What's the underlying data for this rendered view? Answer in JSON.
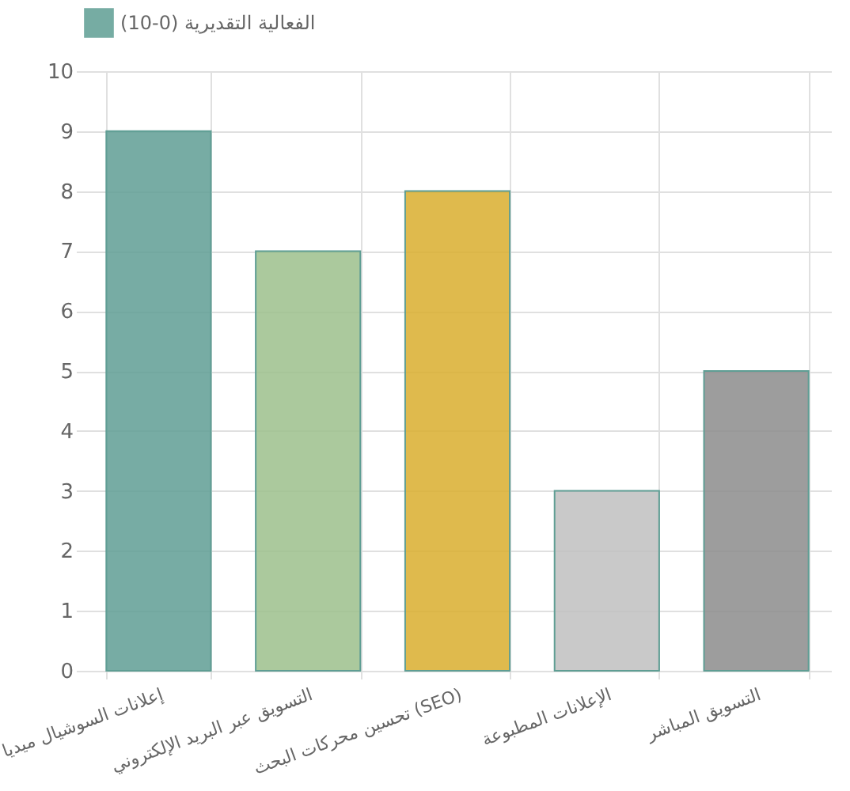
{
  "chart_data": {
    "type": "bar",
    "categories": [
      "إعلانات السوشيال ميديا",
      "التسويق عبر البريد الإلكتروني",
      "تحسين محركات البحث (SEO)",
      "الإعلانات المطبوعة",
      "التسويق المباشر"
    ],
    "series": [
      {
        "name": "الفعالية التقديرية (0-10)",
        "colors": [
          "#5f9e94",
          "#9cbf8c",
          "#d9ae2e",
          "#c0c0c0",
          "#8c8c8c"
        ],
        "values": [
          9,
          7,
          8,
          3,
          5
        ]
      }
    ],
    "ylim": [
      0,
      10
    ],
    "yticks": [
      0,
      1,
      2,
      3,
      4,
      5,
      6,
      7,
      8,
      9,
      10
    ],
    "grid": true,
    "legend": "top"
  }
}
